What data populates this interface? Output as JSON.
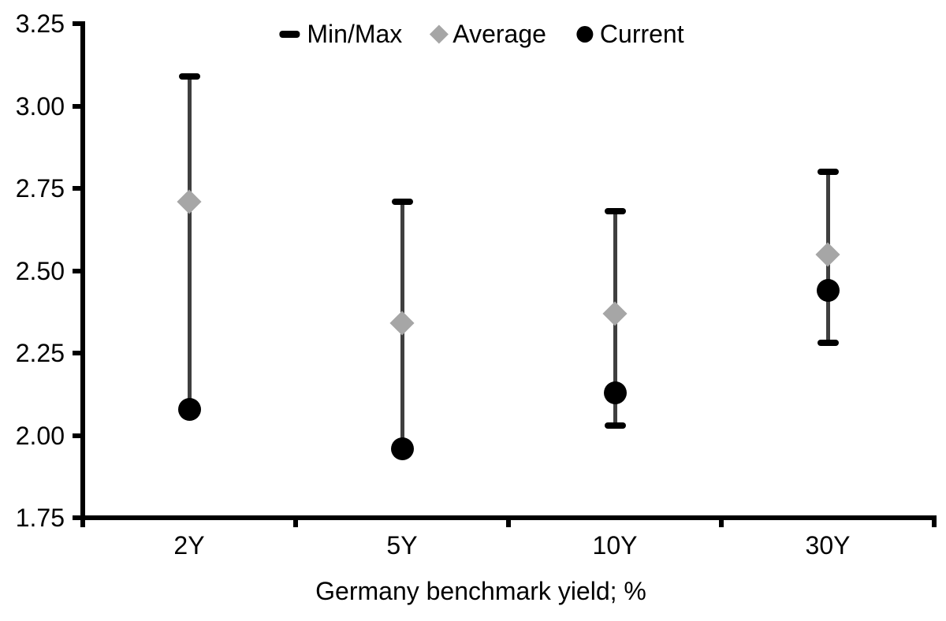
{
  "chart_data": {
    "type": "scatter",
    "title": "",
    "xlabel": "Germany benchmark yield; %",
    "ylabel": "",
    "categories": [
      "2Y",
      "5Y",
      "10Y",
      "30Y"
    ],
    "ylim": [
      1.75,
      3.25
    ],
    "ytick_step": 0.25,
    "yticks": [
      3.25,
      3.0,
      2.75,
      2.5,
      2.25,
      2.0,
      1.75
    ],
    "grid": false,
    "legend_position": "top-center",
    "legend": [
      {
        "label": "Min/Max",
        "marker": "dash"
      },
      {
        "label": "Average",
        "marker": "diamond"
      },
      {
        "label": "Current",
        "marker": "circle"
      }
    ],
    "series": [
      {
        "name": "Max",
        "marker": "cap",
        "values": [
          3.09,
          2.71,
          2.68,
          2.8
        ]
      },
      {
        "name": "Min",
        "marker": "cap",
        "values": [
          2.08,
          1.96,
          2.03,
          2.28
        ]
      },
      {
        "name": "Average",
        "marker": "diamond",
        "values": [
          2.71,
          2.34,
          2.37,
          2.55
        ]
      },
      {
        "name": "Current",
        "marker": "circle",
        "values": [
          2.08,
          1.96,
          2.13,
          2.44
        ]
      }
    ]
  },
  "colors": {
    "range_line": "#3f3f3f",
    "cap": "#000000",
    "average_marker": "#a6a6a6",
    "current_marker": "#000000",
    "axis": "#000000",
    "text": "#000000",
    "background": "#ffffff"
  }
}
